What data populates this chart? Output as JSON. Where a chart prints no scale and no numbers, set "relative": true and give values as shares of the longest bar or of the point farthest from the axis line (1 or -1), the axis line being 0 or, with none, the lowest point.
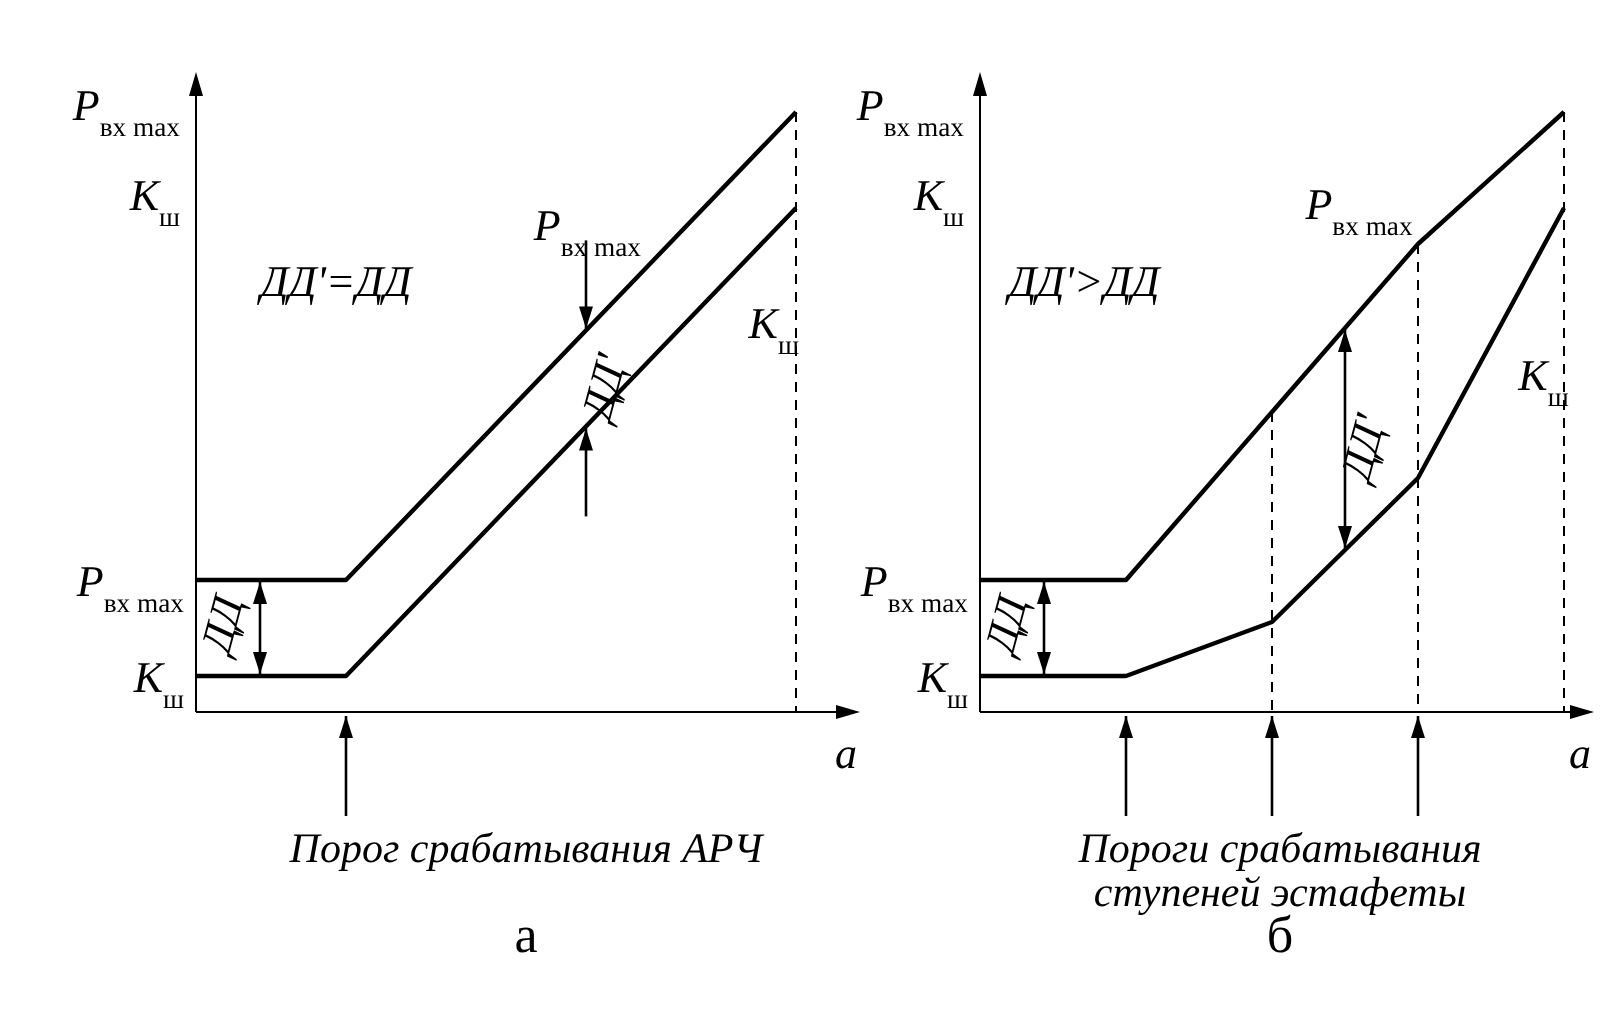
{
  "chart_data": [
    {
      "type": "line",
      "relative": true,
      "ylabel": "P$_{вх max}$\nK$_{ш}$",
      "xlabel": "a",
      "categories": [
        null,
        null,
        null,
        null,
        null
      ],
      "legend": "left",
      "marker": "none",
      "line_style": "solid",
      "series": [
        {
          "name": "P$_{вх max}$",
          "color": "#000000",
          "values": [
            0.22,
            0.22,
            0.48,
            0.74,
            1.0
          ]
        },
        {
          "name": "K$_{ш}$",
          "color": "#000000",
          "values": [
            0.06,
            0.06,
            0.32,
            0.58,
            0.84
          ]
        }
      ],
      "annotations": [
        "ДД'=ДД",
        "ДД",
        "ДД'",
        "Порог срабатывания АРЧ",
        "а"
      ]
    },
    {
      "type": "line",
      "relative": true,
      "ylabel": "P$_{вх max}$\nK$_{ш}$",
      "xlabel": "a",
      "categories": [
        null,
        null,
        null,
        null,
        null
      ],
      "legend": "left",
      "marker": "none",
      "line_style": "solid",
      "series": [
        {
          "name": "P$_{вх max}$",
          "color": "#000000",
          "values": [
            0.22,
            0.22,
            0.5,
            0.78,
            1.0
          ]
        },
        {
          "name": "K$_{ш}$",
          "color": "#000000",
          "values": [
            0.06,
            0.06,
            0.15,
            0.39,
            0.84
          ]
        }
      ],
      "annotations": [
        "ДД'>ДД",
        "ДД",
        "ДД'",
        "Пороги срабатывания\nступеней эстафеты",
        "б"
      ]
    }
  ]
}
